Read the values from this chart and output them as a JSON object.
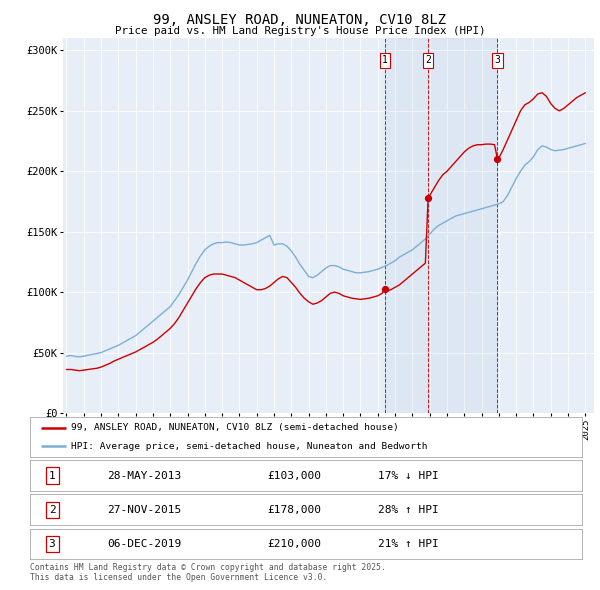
{
  "title": "99, ANSLEY ROAD, NUNEATON, CV10 8LZ",
  "subtitle": "Price paid vs. HM Land Registry's House Price Index (HPI)",
  "ylabel_ticks": [
    "£0",
    "£50K",
    "£100K",
    "£150K",
    "£200K",
    "£250K",
    "£300K"
  ],
  "ytick_values": [
    0,
    50000,
    100000,
    150000,
    200000,
    250000,
    300000
  ],
  "ylim": [
    0,
    310000
  ],
  "xlim_start": 1994.8,
  "xlim_end": 2025.5,
  "hpi_color": "#7bafd4",
  "price_color": "#cc0000",
  "plot_bg": "#e8eef8",
  "sale1_x": 2013.41,
  "sale1_y": 103000,
  "sale2_x": 2015.91,
  "sale2_y": 178000,
  "sale3_x": 2019.92,
  "sale3_y": 210000,
  "legend_line1": "99, ANSLEY ROAD, NUNEATON, CV10 8LZ (semi-detached house)",
  "legend_line2": "HPI: Average price, semi-detached house, Nuneaton and Bedworth",
  "table_rows": [
    [
      "1",
      "28-MAY-2013",
      "£103,000",
      "17% ↓ HPI"
    ],
    [
      "2",
      "27-NOV-2015",
      "£178,000",
      "28% ↑ HPI"
    ],
    [
      "3",
      "06-DEC-2019",
      "£210,000",
      "21% ↑ HPI"
    ]
  ],
  "footnote": "Contains HM Land Registry data © Crown copyright and database right 2025.\nThis data is licensed under the Open Government Licence v3.0.",
  "hpi_data": [
    [
      1995.0,
      47000
    ],
    [
      1995.25,
      47500
    ],
    [
      1995.5,
      46800
    ],
    [
      1995.75,
      46500
    ],
    [
      1996.0,
      47000
    ],
    [
      1996.25,
      47800
    ],
    [
      1996.5,
      48500
    ],
    [
      1996.75,
      49200
    ],
    [
      1997.0,
      50000
    ],
    [
      1997.25,
      51500
    ],
    [
      1997.5,
      53000
    ],
    [
      1997.75,
      54500
    ],
    [
      1998.0,
      56000
    ],
    [
      1998.25,
      58000
    ],
    [
      1998.5,
      60000
    ],
    [
      1998.75,
      62000
    ],
    [
      1999.0,
      64000
    ],
    [
      1999.25,
      67000
    ],
    [
      1999.5,
      70000
    ],
    [
      1999.75,
      73000
    ],
    [
      2000.0,
      76000
    ],
    [
      2000.25,
      79000
    ],
    [
      2000.5,
      82000
    ],
    [
      2000.75,
      85000
    ],
    [
      2001.0,
      88000
    ],
    [
      2001.25,
      93000
    ],
    [
      2001.5,
      98000
    ],
    [
      2001.75,
      104000
    ],
    [
      2002.0,
      110000
    ],
    [
      2002.25,
      117000
    ],
    [
      2002.5,
      124000
    ],
    [
      2002.75,
      130000
    ],
    [
      2003.0,
      135000
    ],
    [
      2003.25,
      138000
    ],
    [
      2003.5,
      140000
    ],
    [
      2003.75,
      141000
    ],
    [
      2004.0,
      141000
    ],
    [
      2004.25,
      141500
    ],
    [
      2004.5,
      141000
    ],
    [
      2004.75,
      140000
    ],
    [
      2005.0,
      139000
    ],
    [
      2005.25,
      139000
    ],
    [
      2005.5,
      139500
    ],
    [
      2005.75,
      140000
    ],
    [
      2006.0,
      141000
    ],
    [
      2006.25,
      143000
    ],
    [
      2006.5,
      145000
    ],
    [
      2006.75,
      147000
    ],
    [
      2007.0,
      139000
    ],
    [
      2007.25,
      140000
    ],
    [
      2007.5,
      140000
    ],
    [
      2007.75,
      138000
    ],
    [
      2008.0,
      134000
    ],
    [
      2008.25,
      129000
    ],
    [
      2008.5,
      123000
    ],
    [
      2008.75,
      118000
    ],
    [
      2009.0,
      113000
    ],
    [
      2009.25,
      112000
    ],
    [
      2009.5,
      114000
    ],
    [
      2009.75,
      117000
    ],
    [
      2010.0,
      120000
    ],
    [
      2010.25,
      122000
    ],
    [
      2010.5,
      122000
    ],
    [
      2010.75,
      121000
    ],
    [
      2011.0,
      119000
    ],
    [
      2011.25,
      118000
    ],
    [
      2011.5,
      117000
    ],
    [
      2011.75,
      116000
    ],
    [
      2012.0,
      116000
    ],
    [
      2012.25,
      116500
    ],
    [
      2012.5,
      117000
    ],
    [
      2012.75,
      118000
    ],
    [
      2013.0,
      119000
    ],
    [
      2013.25,
      120500
    ],
    [
      2013.5,
      122000
    ],
    [
      2013.75,
      124000
    ],
    [
      2014.0,
      126000
    ],
    [
      2014.25,
      129000
    ],
    [
      2014.5,
      131000
    ],
    [
      2014.75,
      133000
    ],
    [
      2015.0,
      135000
    ],
    [
      2015.25,
      138000
    ],
    [
      2015.5,
      141000
    ],
    [
      2015.75,
      144000
    ],
    [
      2016.0,
      148000
    ],
    [
      2016.25,
      152000
    ],
    [
      2016.5,
      155000
    ],
    [
      2016.75,
      157000
    ],
    [
      2017.0,
      159000
    ],
    [
      2017.25,
      161000
    ],
    [
      2017.5,
      163000
    ],
    [
      2017.75,
      164000
    ],
    [
      2018.0,
      165000
    ],
    [
      2018.25,
      166000
    ],
    [
      2018.5,
      167000
    ],
    [
      2018.75,
      168000
    ],
    [
      2019.0,
      169000
    ],
    [
      2019.25,
      170000
    ],
    [
      2019.5,
      171000
    ],
    [
      2019.75,
      172000
    ],
    [
      2020.0,
      173000
    ],
    [
      2020.25,
      175000
    ],
    [
      2020.5,
      180000
    ],
    [
      2020.75,
      187000
    ],
    [
      2021.0,
      194000
    ],
    [
      2021.25,
      200000
    ],
    [
      2021.5,
      205000
    ],
    [
      2021.75,
      208000
    ],
    [
      2022.0,
      212000
    ],
    [
      2022.25,
      218000
    ],
    [
      2022.5,
      221000
    ],
    [
      2022.75,
      220000
    ],
    [
      2023.0,
      218000
    ],
    [
      2023.25,
      217000
    ],
    [
      2023.5,
      217500
    ],
    [
      2023.75,
      218000
    ],
    [
      2024.0,
      219000
    ],
    [
      2024.25,
      220000
    ],
    [
      2024.5,
      221000
    ],
    [
      2024.75,
      222000
    ],
    [
      2025.0,
      223000
    ]
  ],
  "price_data": [
    [
      1995.0,
      36000
    ],
    [
      1995.25,
      36000
    ],
    [
      1995.5,
      35500
    ],
    [
      1995.75,
      35000
    ],
    [
      1996.0,
      35500
    ],
    [
      1996.25,
      36000
    ],
    [
      1996.5,
      36500
    ],
    [
      1996.75,
      37000
    ],
    [
      1997.0,
      38000
    ],
    [
      1997.25,
      39500
    ],
    [
      1997.5,
      41000
    ],
    [
      1997.75,
      43000
    ],
    [
      1998.0,
      44500
    ],
    [
      1998.25,
      46000
    ],
    [
      1998.5,
      47500
    ],
    [
      1998.75,
      49000
    ],
    [
      1999.0,
      50500
    ],
    [
      1999.25,
      52500
    ],
    [
      1999.5,
      54500
    ],
    [
      1999.75,
      56500
    ],
    [
      2000.0,
      58500
    ],
    [
      2000.25,
      61000
    ],
    [
      2000.5,
      64000
    ],
    [
      2000.75,
      67000
    ],
    [
      2001.0,
      70000
    ],
    [
      2001.25,
      74000
    ],
    [
      2001.5,
      79000
    ],
    [
      2001.75,
      85000
    ],
    [
      2002.0,
      91000
    ],
    [
      2002.25,
      97000
    ],
    [
      2002.5,
      103000
    ],
    [
      2002.75,
      108000
    ],
    [
      2003.0,
      112000
    ],
    [
      2003.25,
      114000
    ],
    [
      2003.5,
      115000
    ],
    [
      2003.75,
      115000
    ],
    [
      2004.0,
      115000
    ],
    [
      2004.25,
      114000
    ],
    [
      2004.5,
      113000
    ],
    [
      2004.75,
      112000
    ],
    [
      2005.0,
      110000
    ],
    [
      2005.25,
      108000
    ],
    [
      2005.5,
      106000
    ],
    [
      2005.75,
      104000
    ],
    [
      2006.0,
      102000
    ],
    [
      2006.25,
      102000
    ],
    [
      2006.5,
      103000
    ],
    [
      2006.75,
      105000
    ],
    [
      2007.0,
      108000
    ],
    [
      2007.25,
      111000
    ],
    [
      2007.5,
      113000
    ],
    [
      2007.75,
      112000
    ],
    [
      2008.0,
      108000
    ],
    [
      2008.25,
      104000
    ],
    [
      2008.5,
      99000
    ],
    [
      2008.75,
      95000
    ],
    [
      2009.0,
      92000
    ],
    [
      2009.25,
      90000
    ],
    [
      2009.5,
      91000
    ],
    [
      2009.75,
      93000
    ],
    [
      2010.0,
      96000
    ],
    [
      2010.25,
      99000
    ],
    [
      2010.5,
      100000
    ],
    [
      2010.75,
      99000
    ],
    [
      2011.0,
      97000
    ],
    [
      2011.25,
      96000
    ],
    [
      2011.5,
      95000
    ],
    [
      2011.75,
      94500
    ],
    [
      2012.0,
      94000
    ],
    [
      2012.25,
      94500
    ],
    [
      2012.5,
      95000
    ],
    [
      2012.75,
      96000
    ],
    [
      2013.0,
      97000
    ],
    [
      2013.25,
      99000
    ],
    [
      2013.41,
      103000
    ],
    [
      2013.5,
      101000
    ],
    [
      2013.75,
      102000
    ],
    [
      2014.0,
      104000
    ],
    [
      2014.25,
      106000
    ],
    [
      2014.5,
      109000
    ],
    [
      2014.75,
      112000
    ],
    [
      2015.0,
      115000
    ],
    [
      2015.25,
      118000
    ],
    [
      2015.5,
      121000
    ],
    [
      2015.75,
      124000
    ],
    [
      2015.91,
      178000
    ],
    [
      2016.0,
      180000
    ],
    [
      2016.25,
      186000
    ],
    [
      2016.5,
      192000
    ],
    [
      2016.75,
      197000
    ],
    [
      2017.0,
      200000
    ],
    [
      2017.25,
      204000
    ],
    [
      2017.5,
      208000
    ],
    [
      2017.75,
      212000
    ],
    [
      2018.0,
      216000
    ],
    [
      2018.25,
      219000
    ],
    [
      2018.5,
      221000
    ],
    [
      2018.75,
      222000
    ],
    [
      2019.0,
      222000
    ],
    [
      2019.25,
      222500
    ],
    [
      2019.5,
      222500
    ],
    [
      2019.75,
      222000
    ],
    [
      2019.92,
      210000
    ],
    [
      2020.0,
      211000
    ],
    [
      2020.25,
      218000
    ],
    [
      2020.5,
      226000
    ],
    [
      2020.75,
      234000
    ],
    [
      2021.0,
      242000
    ],
    [
      2021.25,
      250000
    ],
    [
      2021.5,
      255000
    ],
    [
      2021.75,
      257000
    ],
    [
      2022.0,
      260000
    ],
    [
      2022.25,
      264000
    ],
    [
      2022.5,
      265000
    ],
    [
      2022.75,
      262000
    ],
    [
      2023.0,
      256000
    ],
    [
      2023.25,
      252000
    ],
    [
      2023.5,
      250000
    ],
    [
      2023.75,
      252000
    ],
    [
      2024.0,
      255000
    ],
    [
      2024.25,
      258000
    ],
    [
      2024.5,
      261000
    ],
    [
      2024.75,
      263000
    ],
    [
      2025.0,
      265000
    ]
  ]
}
